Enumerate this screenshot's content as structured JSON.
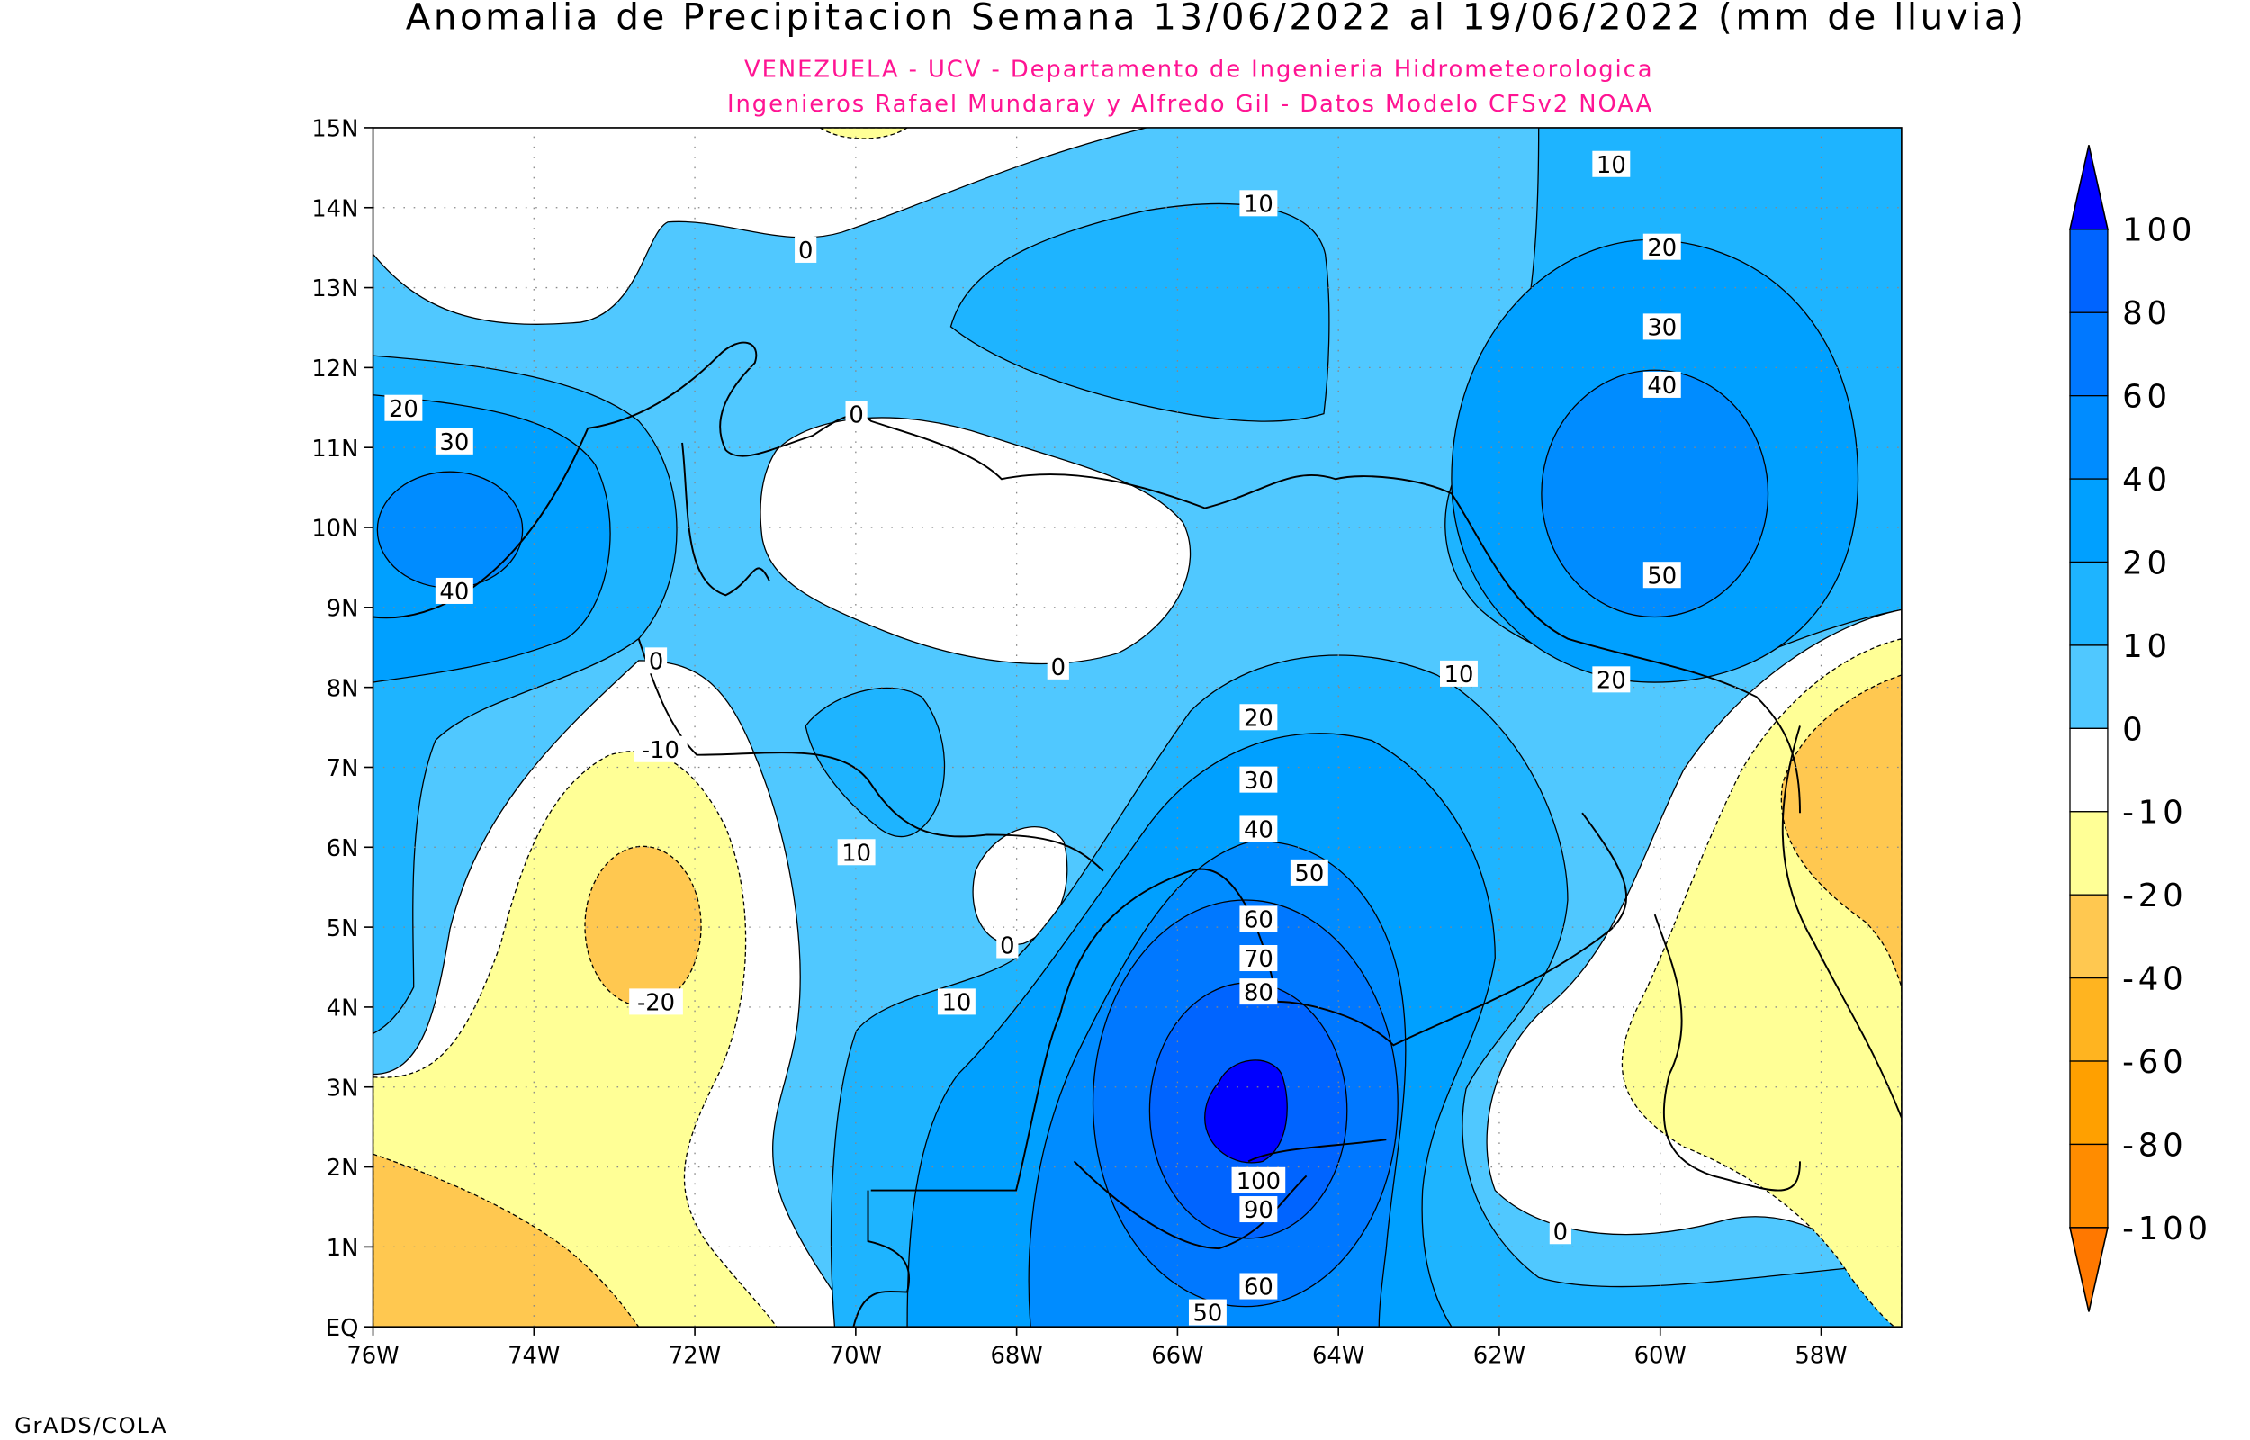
{
  "title": "Anomalia de Precipitacion Semana 13/06/2022 al 19/06/2022 (mm de lluvia)",
  "subtitle1": "VENEZUELA - UCV - Departamento de Ingenieria Hidrometeorologica",
  "subtitle2": "Ingenieros Rafael Mundaray y Alfredo Gil - Datos Modelo CFSv2 NOAA",
  "footer": "GrADS/COLA",
  "map": {
    "lon_range": [
      -76,
      -57
    ],
    "lat_range": [
      0,
      15
    ],
    "lat_ticks": [
      "15N",
      "14N",
      "13N",
      "12N",
      "11N",
      "10N",
      "9N",
      "8N",
      "7N",
      "6N",
      "5N",
      "4N",
      "3N",
      "2N",
      "1N",
      "EQ"
    ],
    "lon_ticks": [
      "76W",
      "74W",
      "72W",
      "70W",
      "68W",
      "66W",
      "64W",
      "62W",
      "60W",
      "58W"
    ],
    "grid": true,
    "contour_labels": [
      "10",
      "10",
      "0",
      "20",
      "30",
      "40",
      "20",
      "30",
      "0",
      "40",
      "50",
      "0",
      "0",
      "10",
      "20",
      "-10",
      "20",
      "30",
      "40",
      "50",
      "10",
      "60",
      "0",
      "70",
      "80",
      "10",
      "-20",
      "100",
      "90",
      "0",
      "60",
      "50"
    ]
  },
  "colorbar": {
    "labels": [
      "100",
      "80",
      "60",
      "40",
      "20",
      "10",
      "0",
      "-10",
      "-20",
      "-40",
      "-60",
      "-80",
      "-100"
    ],
    "colors": [
      "#0000FF",
      "#0064FF",
      "#0078FF",
      "#008CFF",
      "#00A0FF",
      "#1EB4FF",
      "#50C8FF",
      "#FFFFFF",
      "#FFFF96",
      "#FFC850",
      "#FFB420",
      "#FFA000",
      "#FF8C00",
      "#FF7800"
    ]
  },
  "colors": {
    "title": "#000000",
    "subtitle": "#FF1493"
  }
}
